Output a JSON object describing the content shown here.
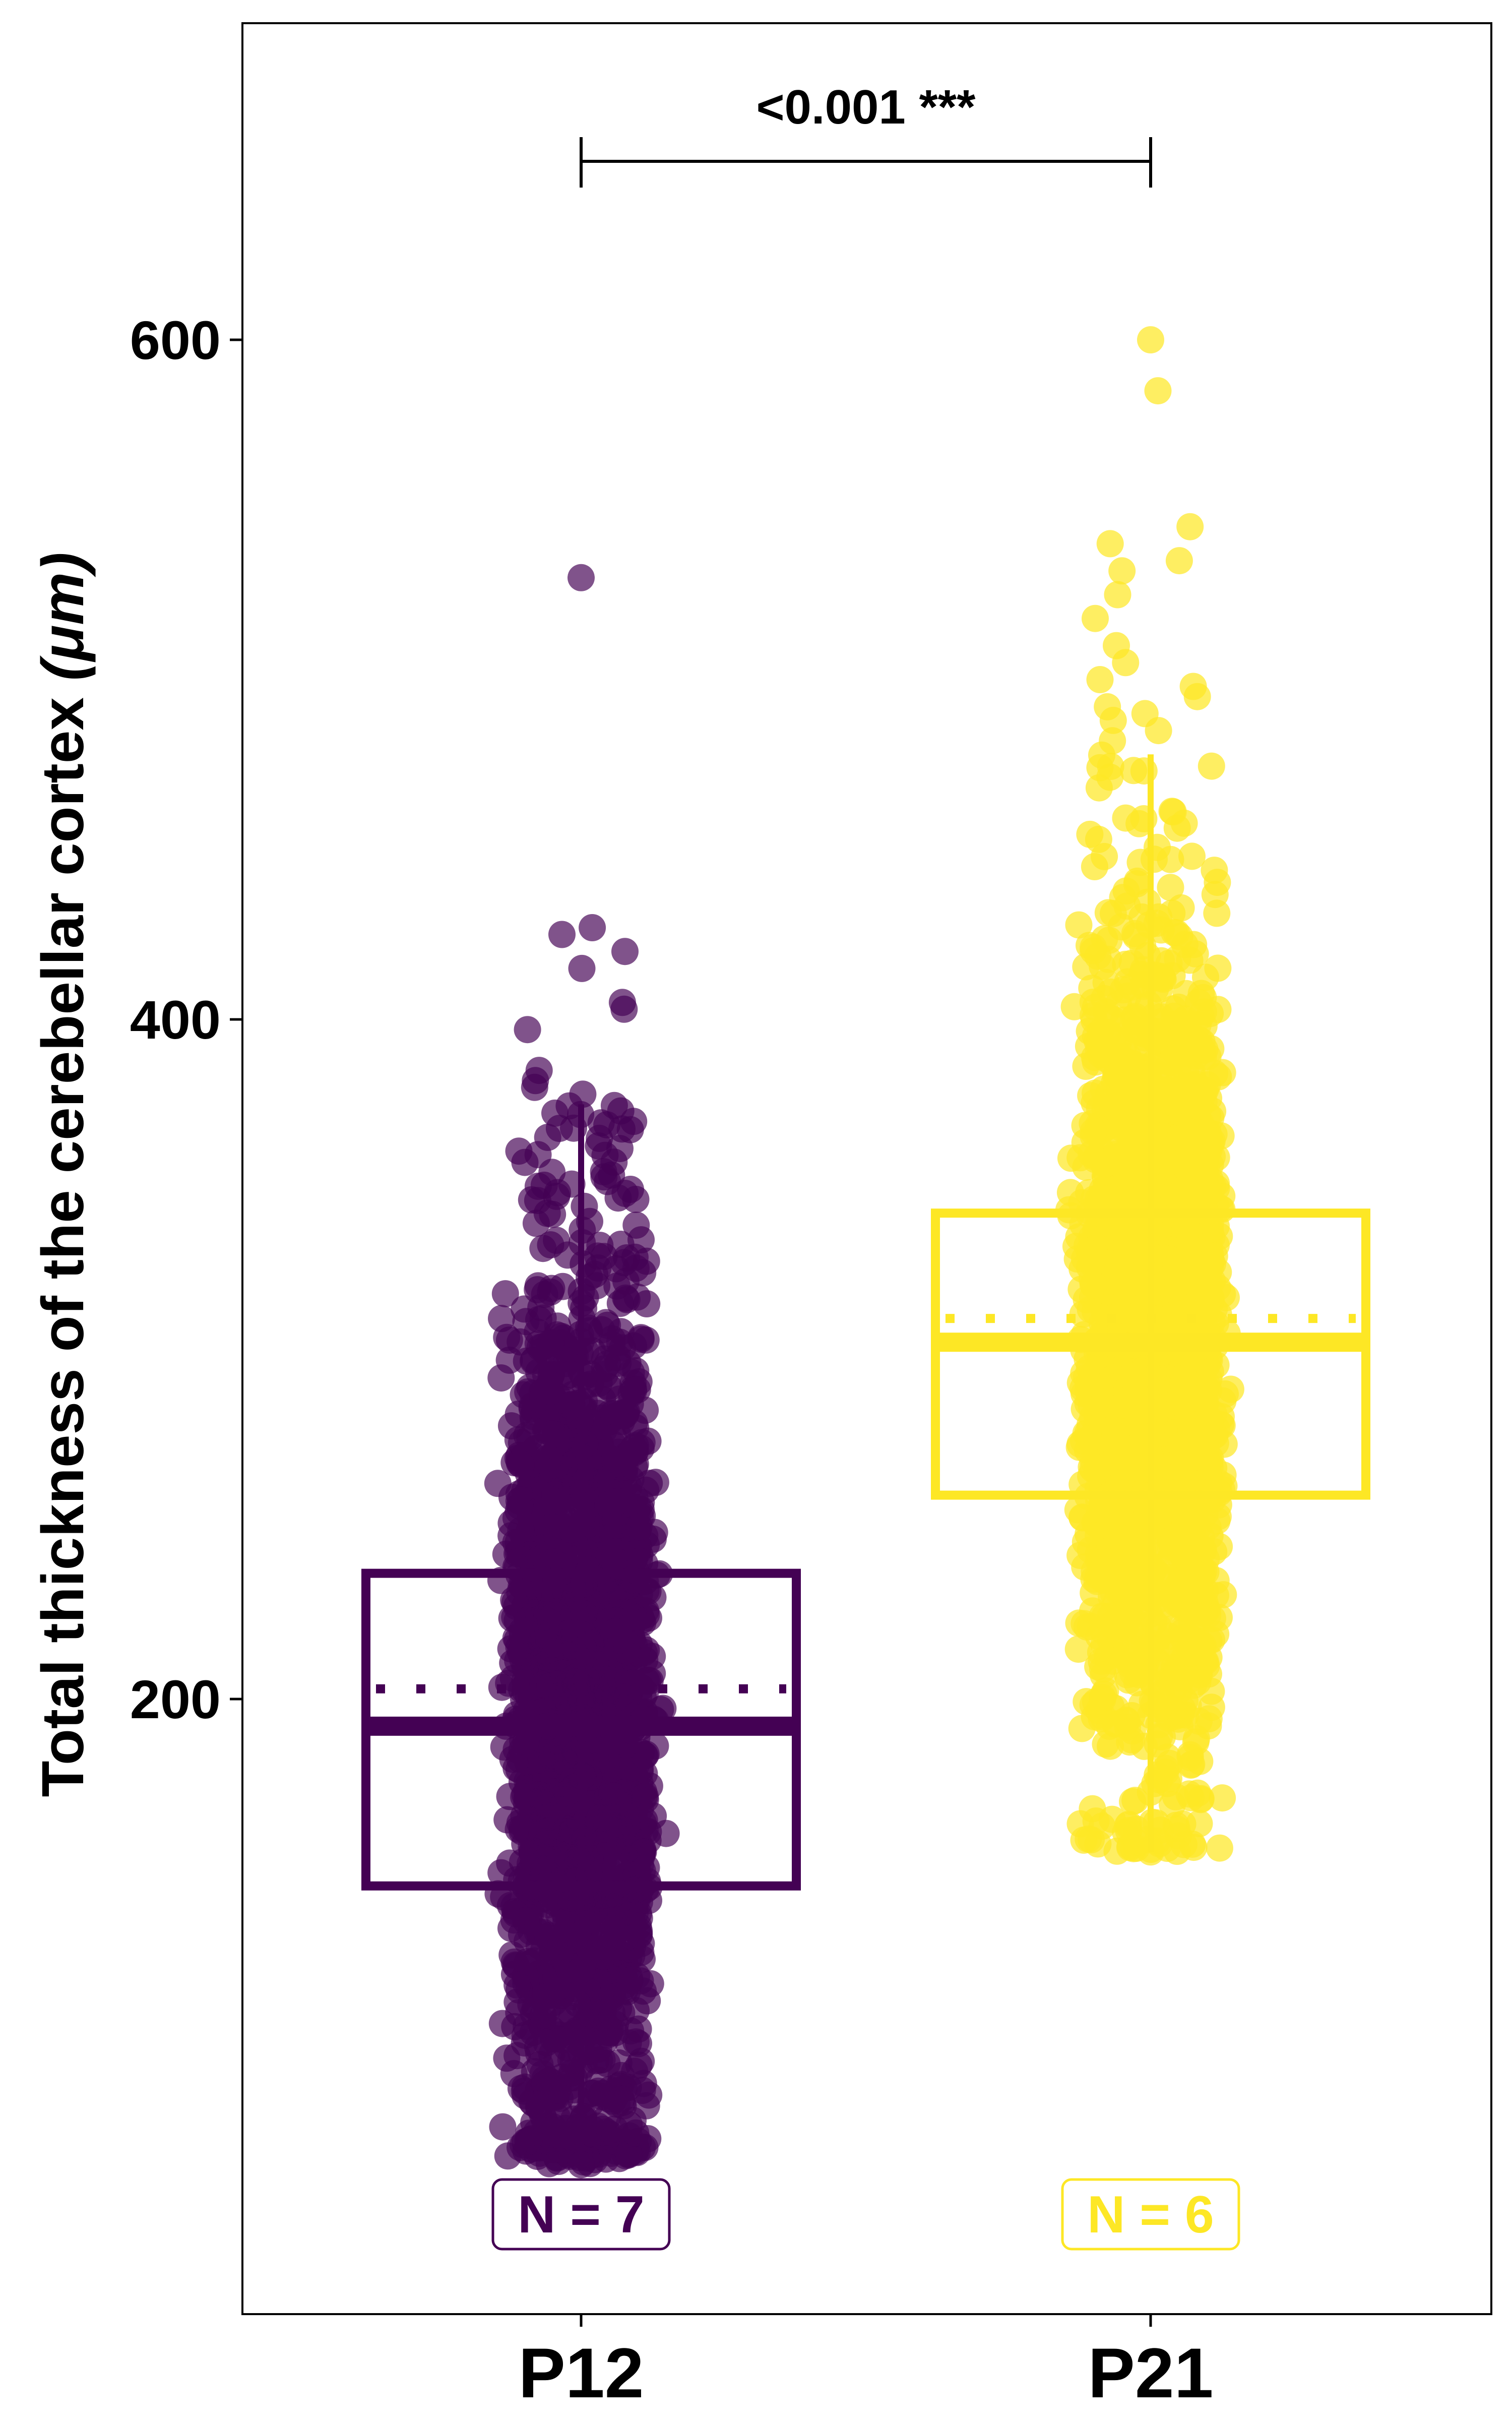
{
  "chart_data": {
    "type": "box",
    "title": "",
    "xlabel": "",
    "ylabel_main": "Total thickness of the cerebellar cortex ",
    "ylabel_unit": "(μm)",
    "ylim": [
      50,
      700
    ],
    "yticks": [
      200,
      400,
      600
    ],
    "ytick_labels": [
      "200",
      "400",
      "600"
    ],
    "grid": false,
    "legend": "none",
    "categories": [
      "P12",
      "P21"
    ],
    "groups": [
      {
        "name": "P12",
        "color": "#440154",
        "n_label": "N = 7",
        "q1": 145,
        "median": 192,
        "mean": 203,
        "q3": 237,
        "whisker_low": 63,
        "whisker_high": 375,
        "outliers": [
          530,
          425,
          427,
          420,
          415,
          405,
          403,
          397,
          385,
          382,
          380,
          378,
          372,
          370,
          368,
          365,
          362,
          360,
          358,
          355,
          350,
          345,
          340,
          338,
          335,
          330,
          328,
          325,
          320,
          318,
          315,
          312,
          310,
          308,
          305
        ],
        "point_count": 2200
      },
      {
        "name": "P21",
        "color": "#FDE725",
        "n_label": "N = 6",
        "q1": 260,
        "median": 305,
        "mean": 312,
        "q3": 343,
        "whisker_low": 155,
        "whisker_high": 478,
        "outliers": [
          600,
          585,
          545,
          540,
          535,
          532,
          525,
          518,
          510,
          505,
          500,
          498,
          495,
          492,
          490,
          488,
          485,
          482
        ],
        "point_count": 2000
      }
    ],
    "annotation": {
      "text": "<0.001 ***",
      "between": [
        "P12",
        "P21"
      ],
      "y": 655
    }
  }
}
